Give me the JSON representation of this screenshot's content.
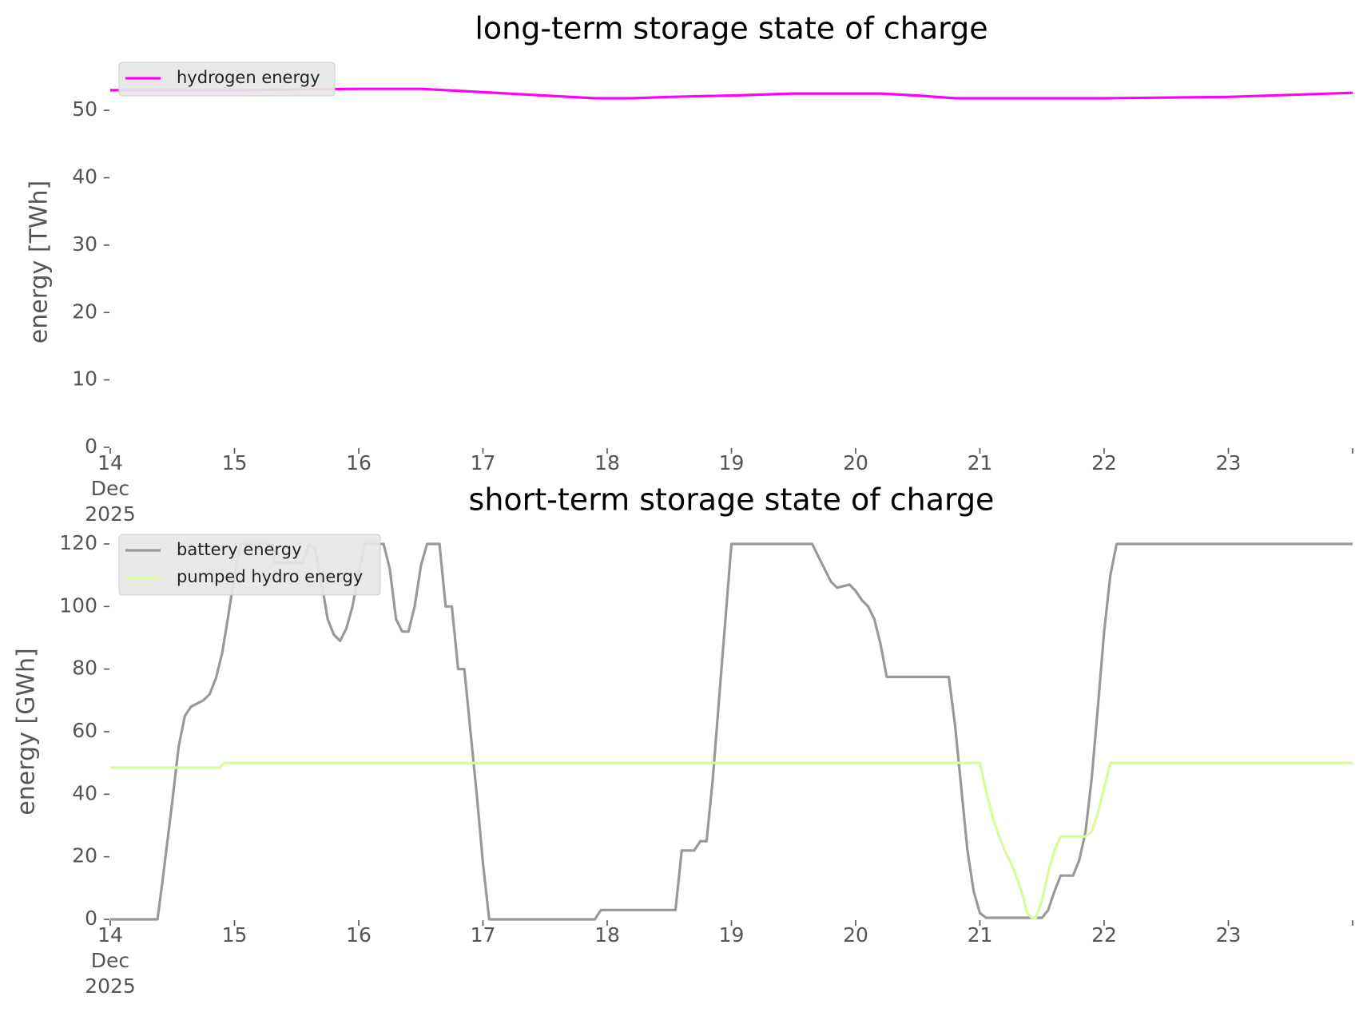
{
  "chart_data": [
    {
      "type": "line",
      "title": "long-term storage state of charge",
      "xlabel": "",
      "ylabel": "energy [TWh]",
      "x_tick_labels": [
        "14\nDec\n2025",
        "15",
        "16",
        "17",
        "18",
        "19",
        "20",
        "21",
        "22",
        "23"
      ],
      "x_ticks": [
        14,
        15,
        16,
        17,
        18,
        19,
        20,
        21,
        22,
        23,
        24
      ],
      "xlim": [
        14,
        24
      ],
      "ylim": [
        0,
        55
      ],
      "y_ticks": [
        0,
        10,
        20,
        30,
        40,
        50
      ],
      "grid": false,
      "legend_position": "top-left",
      "series": [
        {
          "name": "hydrogen energy",
          "color": "#ff00ff",
          "points": [
            [
              14.0,
              53.0
            ],
            [
              15.0,
              53.0
            ],
            [
              15.5,
              53.1
            ],
            [
              16.0,
              53.2
            ],
            [
              16.5,
              53.2
            ],
            [
              17.0,
              52.7
            ],
            [
              17.5,
              52.2
            ],
            [
              17.9,
              51.8
            ],
            [
              18.2,
              51.8
            ],
            [
              18.5,
              52.0
            ],
            [
              19.0,
              52.2
            ],
            [
              19.5,
              52.5
            ],
            [
              20.2,
              52.5
            ],
            [
              20.5,
              52.2
            ],
            [
              20.8,
              51.8
            ],
            [
              21.5,
              51.8
            ],
            [
              22.0,
              51.8
            ],
            [
              23.0,
              52.0
            ],
            [
              24.0,
              52.6
            ]
          ]
        }
      ]
    },
    {
      "type": "line",
      "title": "short-term storage state of charge",
      "xlabel": "",
      "ylabel": "energy [GWh]",
      "x_tick_labels": [
        "14\nDec\n2025",
        "15",
        "16",
        "17",
        "18",
        "19",
        "20",
        "21",
        "22",
        "23"
      ],
      "x_ticks": [
        14,
        15,
        16,
        17,
        18,
        19,
        20,
        21,
        22,
        23,
        24
      ],
      "xlim": [
        14,
        24
      ],
      "ylim": [
        0,
        120
      ],
      "y_ticks": [
        0,
        20,
        40,
        60,
        80,
        100,
        120
      ],
      "grid": false,
      "legend_position": "top-left",
      "series": [
        {
          "name": "battery energy",
          "color": "#999999",
          "points": [
            [
              14.0,
              0
            ],
            [
              14.38,
              0
            ],
            [
              14.42,
              12
            ],
            [
              14.5,
              38
            ],
            [
              14.55,
              55
            ],
            [
              14.6,
              65
            ],
            [
              14.65,
              68
            ],
            [
              14.75,
              70
            ],
            [
              14.8,
              72
            ],
            [
              14.85,
              77
            ],
            [
              14.9,
              85
            ],
            [
              14.95,
              97
            ],
            [
              15.0,
              110
            ],
            [
              15.05,
              120
            ],
            [
              15.3,
              120
            ],
            [
              15.32,
              114
            ],
            [
              15.55,
              114
            ],
            [
              15.6,
              120
            ],
            [
              15.65,
              118
            ],
            [
              15.7,
              108
            ],
            [
              15.75,
              96
            ],
            [
              15.8,
              91
            ],
            [
              15.85,
              89
            ],
            [
              15.9,
              93
            ],
            [
              15.95,
              100
            ],
            [
              16.0,
              111
            ],
            [
              16.05,
              120
            ],
            [
              16.2,
              120
            ],
            [
              16.25,
              112
            ],
            [
              16.3,
              96
            ],
            [
              16.35,
              92
            ],
            [
              16.4,
              92
            ],
            [
              16.45,
              100
            ],
            [
              16.5,
              113
            ],
            [
              16.55,
              120
            ],
            [
              16.65,
              120
            ],
            [
              16.7,
              100
            ],
            [
              16.75,
              100
            ],
            [
              16.8,
              80
            ],
            [
              16.85,
              80
            ],
            [
              16.9,
              60
            ],
            [
              16.95,
              40
            ],
            [
              17.0,
              18
            ],
            [
              17.05,
              0
            ],
            [
              17.9,
              0
            ],
            [
              17.95,
              3
            ],
            [
              18.55,
              3
            ],
            [
              18.6,
              22
            ],
            [
              18.7,
              22
            ],
            [
              18.75,
              25
            ],
            [
              18.8,
              25
            ],
            [
              18.85,
              45
            ],
            [
              18.9,
              70
            ],
            [
              18.95,
              95
            ],
            [
              19.0,
              120
            ],
            [
              19.65,
              120
            ],
            [
              19.7,
              116
            ],
            [
              19.75,
              112
            ],
            [
              19.8,
              108
            ],
            [
              19.85,
              106
            ],
            [
              19.95,
              107
            ],
            [
              20.0,
              105
            ],
            [
              20.05,
              102
            ],
            [
              20.1,
              100
            ],
            [
              20.15,
              96
            ],
            [
              20.2,
              88
            ],
            [
              20.25,
              77.5
            ],
            [
              20.75,
              77.5
            ],
            [
              20.8,
              62
            ],
            [
              20.85,
              42
            ],
            [
              20.9,
              22
            ],
            [
              20.95,
              9
            ],
            [
              21.0,
              2
            ],
            [
              21.05,
              0.5
            ],
            [
              21.5,
              0.5
            ],
            [
              21.55,
              3
            ],
            [
              21.6,
              9
            ],
            [
              21.65,
              14
            ],
            [
              21.75,
              14
            ],
            [
              21.8,
              19
            ],
            [
              21.85,
              28
            ],
            [
              21.9,
              45
            ],
            [
              21.95,
              68
            ],
            [
              22.0,
              92
            ],
            [
              22.05,
              110
            ],
            [
              22.1,
              120
            ],
            [
              24.0,
              120
            ]
          ]
        },
        {
          "name": "pumped hydro energy",
          "color": "#d9f99d",
          "points": [
            [
              14.0,
              48.5
            ],
            [
              14.88,
              48.5
            ],
            [
              14.92,
              50
            ],
            [
              21.0,
              50
            ],
            [
              21.05,
              41
            ],
            [
              21.1,
              33
            ],
            [
              21.15,
              27
            ],
            [
              21.2,
              22
            ],
            [
              21.25,
              18
            ],
            [
              21.3,
              13
            ],
            [
              21.35,
              7
            ],
            [
              21.38,
              2
            ],
            [
              21.42,
              0.5
            ],
            [
              21.45,
              0.5
            ],
            [
              21.5,
              6
            ],
            [
              21.55,
              15
            ],
            [
              21.6,
              22
            ],
            [
              21.65,
              26.5
            ],
            [
              21.85,
              26.5
            ],
            [
              21.9,
              28
            ],
            [
              21.95,
              34
            ],
            [
              22.0,
              42
            ],
            [
              22.05,
              50
            ],
            [
              24.0,
              50
            ]
          ]
        }
      ]
    }
  ]
}
